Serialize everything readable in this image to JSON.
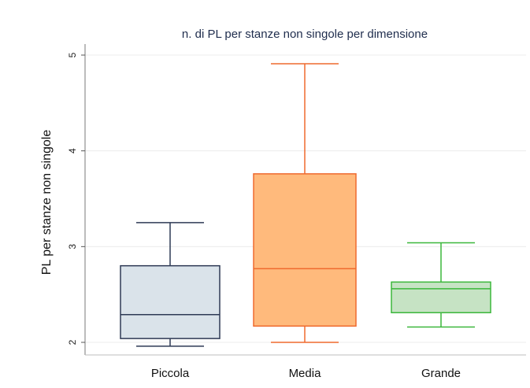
{
  "chart_data": {
    "type": "boxplot",
    "title": "n. di PL per stanze non singole per dimensione",
    "xlabel": "",
    "ylabel": "PL per stanze non singole",
    "ylim": [
      1.95,
      5.2
    ],
    "yticks": [
      "2",
      "3",
      "4",
      "5"
    ],
    "grid": true,
    "categories": [
      "Piccola",
      "Media",
      "Grande"
    ],
    "boxes": [
      {
        "name": "Piccola",
        "whisker_low": 1.96,
        "q1": 2.04,
        "median": 2.29,
        "q3": 2.8,
        "whisker_high": 3.25,
        "fill": "#dae3ea",
        "stroke": "#2e3a55"
      },
      {
        "name": "Media",
        "whisker_low": 2.0,
        "q1": 2.17,
        "median": 2.77,
        "q3": 3.76,
        "whisker_high": 4.91,
        "fill": "#ffba7c",
        "stroke": "#ef6a2e"
      },
      {
        "name": "Grande",
        "whisker_low": 2.16,
        "q1": 2.31,
        "median": 2.56,
        "q3": 2.63,
        "whisker_high": 3.04,
        "fill": "#c6e3c4",
        "stroke": "#3bb73b"
      }
    ]
  }
}
